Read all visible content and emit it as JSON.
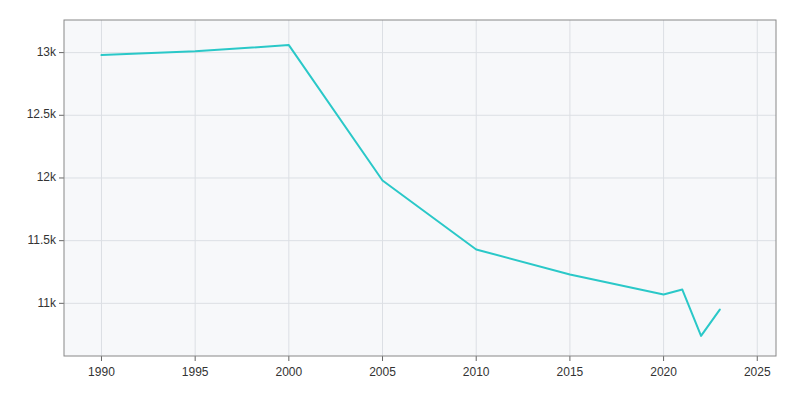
{
  "chart_data": {
    "type": "line",
    "x": [
      1990,
      1995,
      2000,
      2005,
      2010,
      2015,
      2020,
      2021,
      2022,
      2023
    ],
    "values": [
      12980,
      13010,
      13060,
      11980,
      11430,
      11230,
      11070,
      11110,
      10740,
      10950
    ],
    "color": "#2ac8c8",
    "xlim": [
      1988,
      2026
    ],
    "ylim": [
      10580,
      13260
    ],
    "xticks": [
      1990,
      1995,
      2000,
      2005,
      2010,
      2015,
      2020,
      2025
    ],
    "yticks": [
      {
        "value": 11000,
        "label": "11k"
      },
      {
        "value": 11500,
        "label": "11.5k"
      },
      {
        "value": 12000,
        "label": "12k"
      },
      {
        "value": 12500,
        "label": "12.5k"
      },
      {
        "value": 13000,
        "label": "13k"
      }
    ],
    "grid": true
  }
}
